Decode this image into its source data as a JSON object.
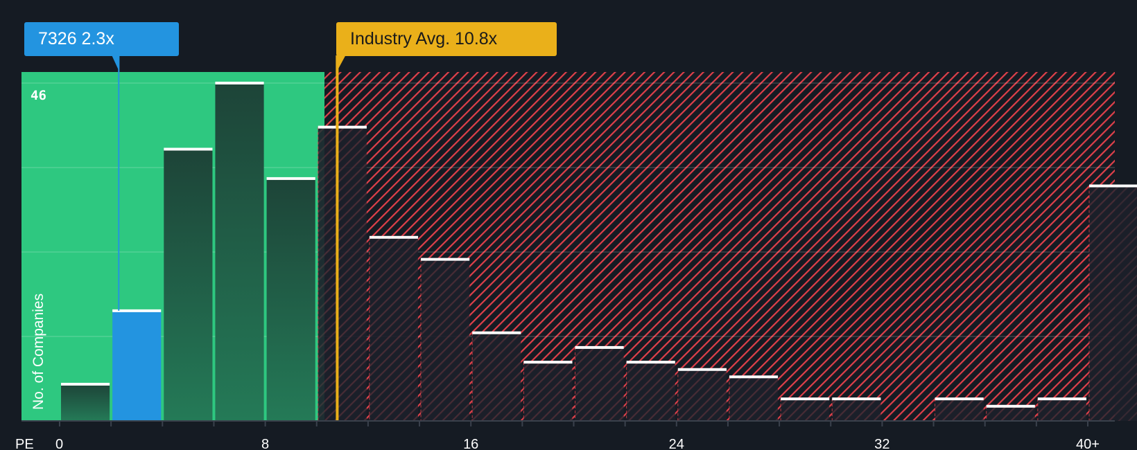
{
  "chart_data": {
    "type": "bar",
    "title": "",
    "xlabel": "PE",
    "ylabel": "No. of Companies",
    "bins": [
      "0-2",
      "2-4",
      "4-6",
      "6-8",
      "8-10",
      "10-12",
      "12-14",
      "14-16",
      "16-18",
      "18-20",
      "20-22",
      "22-24",
      "24-26",
      "26-28",
      "28-30",
      "30-32",
      "32-34",
      "34-36",
      "36-38",
      "38-40",
      "40+"
    ],
    "values": [
      5,
      15,
      37,
      46,
      33,
      40,
      25,
      22,
      12,
      8,
      10,
      8,
      7,
      6,
      3,
      3,
      0,
      3,
      2,
      3,
      32
    ],
    "highlight_bin_index": 1,
    "x_ticks": [
      "0",
      "8",
      "16",
      "24",
      "32",
      "40+"
    ],
    "x_tick_values": [
      0,
      8,
      16,
      24,
      32,
      40
    ],
    "y_ticks": [
      "46"
    ],
    "y_tick_values": [
      46
    ],
    "ylim": [
      0,
      46
    ],
    "xlim": [
      0,
      42
    ],
    "grid": true,
    "company": {
      "label": "7326 2.3x",
      "value": 2.3
    },
    "industry": {
      "label": "Industry Avg. 10.8x",
      "value": 10.8
    },
    "colors": {
      "background": "#151b23",
      "undervalued_zone": "#2ec880",
      "overvalued_hatch": "#e0404a",
      "company": "#2394e0",
      "industry": "#eab01a"
    }
  }
}
